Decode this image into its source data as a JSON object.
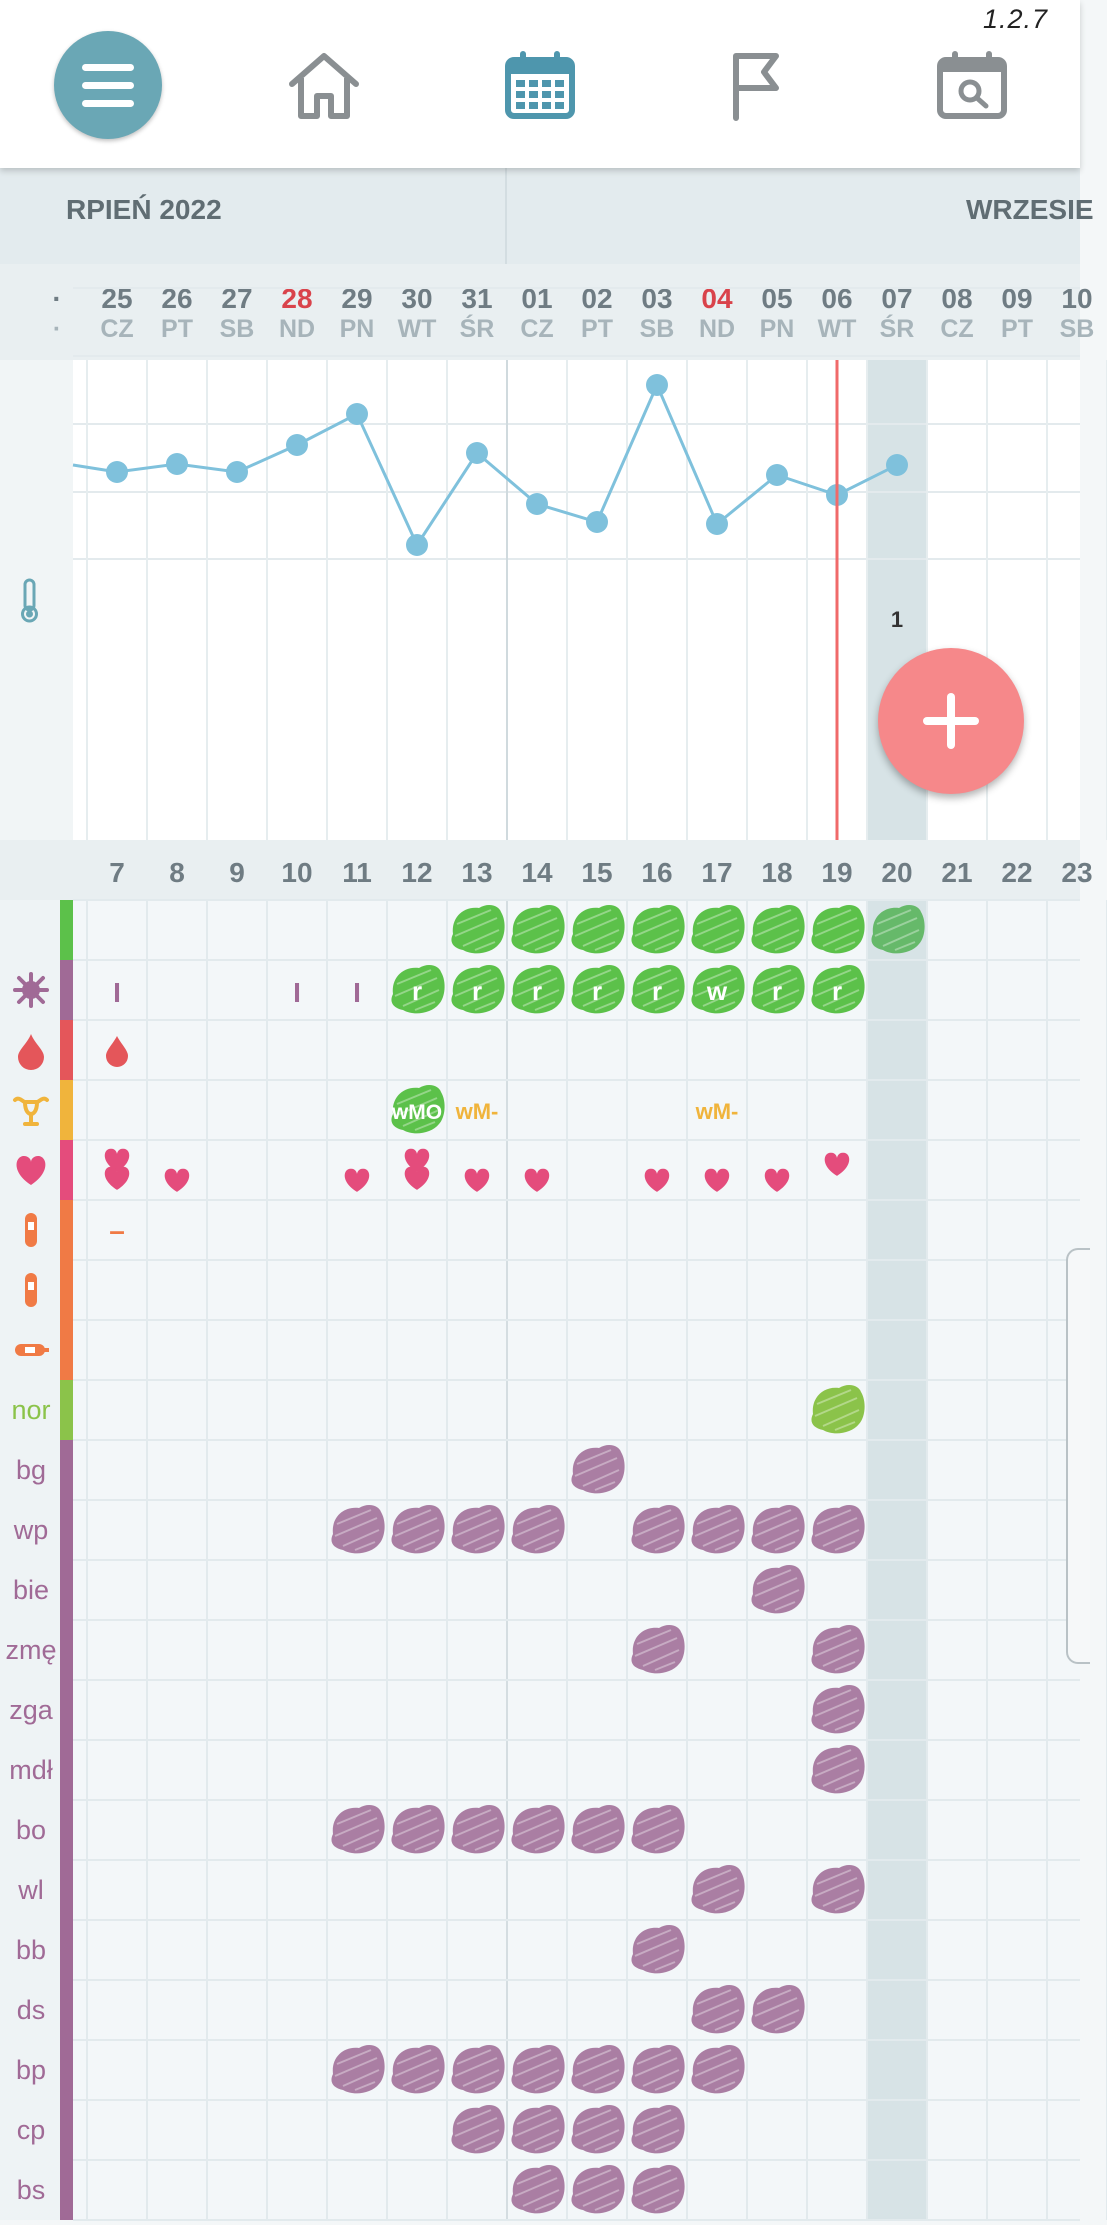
{
  "app": {
    "version": "1.2.7"
  },
  "nav": [
    {
      "name": "menu-icon"
    },
    {
      "name": "home-icon"
    },
    {
      "name": "calendar-icon",
      "active": true
    },
    {
      "name": "flag-icon"
    },
    {
      "name": "calendar-search-icon"
    }
  ],
  "months": [
    {
      "label": "RPIEŃ 2022"
    },
    {
      "label": "WRZESIE"
    }
  ],
  "days": [
    {
      "num": "·",
      "name": "·"
    },
    {
      "num": "25",
      "name": "CZ",
      "cycle": "7"
    },
    {
      "num": "26",
      "name": "PT",
      "cycle": "8"
    },
    {
      "num": "27",
      "name": "SB",
      "cycle": "9"
    },
    {
      "num": "28",
      "name": "ND",
      "cycle": "10",
      "red": true
    },
    {
      "num": "29",
      "name": "PN",
      "cycle": "11"
    },
    {
      "num": "30",
      "name": "WT",
      "cycle": "12"
    },
    {
      "num": "31",
      "name": "ŚR",
      "cycle": "13"
    },
    {
      "num": "01",
      "name": "CZ",
      "cycle": "14"
    },
    {
      "num": "02",
      "name": "PT",
      "cycle": "15"
    },
    {
      "num": "03",
      "name": "SB",
      "cycle": "16"
    },
    {
      "num": "04",
      "name": "ND",
      "cycle": "17",
      "red": true
    },
    {
      "num": "05",
      "name": "PN",
      "cycle": "18"
    },
    {
      "num": "06",
      "name": "WT",
      "cycle": "19"
    },
    {
      "num": "07",
      "name": "ŚR",
      "cycle": "20"
    },
    {
      "num": "08",
      "name": "CZ",
      "cycle": "21"
    },
    {
      "num": "09",
      "name": "PT",
      "cycle": "22"
    },
    {
      "num": "10",
      "name": "SB",
      "cycle": "23"
    }
  ],
  "temperature": {
    "points": [
      null,
      472,
      464,
      472,
      445,
      414,
      545,
      453,
      504,
      522,
      385,
      524,
      475,
      495,
      465
    ],
    "annotation": "1",
    "annotation_index": 14
  },
  "rows": [
    {
      "key": "cervical",
      "color": "#5cc14a",
      "icon": "none"
    },
    {
      "key": "sensation",
      "color": "#a06a96",
      "icon": "splat-icon"
    },
    {
      "key": "bleeding",
      "color": "#e4565a",
      "icon": "drop-icon"
    },
    {
      "key": "cervix",
      "color": "#f0b43c",
      "icon": "uterus-icon"
    },
    {
      "key": "sex",
      "color": "#e44c7c",
      "icon": "heart-icon"
    },
    {
      "key": "lh-test",
      "color": "#f07a45",
      "icon": "test-strip-icon"
    },
    {
      "key": "preg-test",
      "color": "#f07a45",
      "icon": "test-strip-icon"
    },
    {
      "key": "thermometer",
      "color": "#f07a45",
      "icon": "thermometer-icon"
    },
    {
      "key": "nor",
      "color": "#8bc34a",
      "label": "nor"
    },
    {
      "key": "bg",
      "color": "#a06a96",
      "label": "bg"
    },
    {
      "key": "wp",
      "color": "#a06a96",
      "label": "wp"
    },
    {
      "key": "bie",
      "color": "#a06a96",
      "label": "bie"
    },
    {
      "key": "zme",
      "color": "#a06a96",
      "label": "zmę"
    },
    {
      "key": "zga",
      "color": "#a06a96",
      "label": "zga"
    },
    {
      "key": "mdl",
      "color": "#a06a96",
      "label": "mdł"
    },
    {
      "key": "bo",
      "color": "#a06a96",
      "label": "bo"
    },
    {
      "key": "wl",
      "color": "#a06a96",
      "label": "wl"
    },
    {
      "key": "bb",
      "color": "#a06a96",
      "label": "bb"
    },
    {
      "key": "ds",
      "color": "#a06a96",
      "label": "ds"
    },
    {
      "key": "bp",
      "color": "#a06a96",
      "label": "bp"
    },
    {
      "key": "cp",
      "color": "#a06a96",
      "label": "cp"
    },
    {
      "key": "bs",
      "color": "#a06a96",
      "label": "bs"
    }
  ],
  "marks": {
    "splats": [
      {
        "row": 0,
        "cols": [
          7,
          8,
          9,
          10,
          11,
          12,
          13
        ],
        "color": "#5cc14a"
      },
      {
        "row": 0,
        "cols": [
          14
        ],
        "color": "#66b96a"
      },
      {
        "row": 1,
        "cols": [
          6,
          7,
          8,
          9,
          10,
          11,
          12,
          13
        ],
        "color": "#5cc14a"
      },
      {
        "row": 3,
        "cols": [
          6
        ],
        "color": "#5cc14a"
      },
      {
        "row": 8,
        "cols": [
          13
        ],
        "color": "#8bc34a"
      },
      {
        "row": 9,
        "cols": [
          9
        ],
        "color": "#aa7ea3"
      },
      {
        "row": 10,
        "cols": [
          5,
          6,
          7,
          8,
          10,
          11,
          12,
          13
        ],
        "color": "#aa7ea3"
      },
      {
        "row": 11,
        "cols": [
          12
        ],
        "color": "#aa7ea3"
      },
      {
        "row": 12,
        "cols": [
          10,
          13
        ],
        "color": "#aa7ea3"
      },
      {
        "row": 13,
        "cols": [
          13
        ],
        "color": "#aa7ea3"
      },
      {
        "row": 14,
        "cols": [
          13
        ],
        "color": "#aa7ea3"
      },
      {
        "row": 15,
        "cols": [
          5,
          6,
          7,
          8,
          9,
          10
        ],
        "color": "#aa7ea3"
      },
      {
        "row": 16,
        "cols": [
          11,
          13
        ],
        "color": "#aa7ea3"
      },
      {
        "row": 17,
        "cols": [
          10
        ],
        "color": "#aa7ea3"
      },
      {
        "row": 18,
        "cols": [
          11,
          12
        ],
        "color": "#aa7ea3"
      },
      {
        "row": 19,
        "cols": [
          5,
          6,
          7,
          8,
          9,
          10,
          11
        ],
        "color": "#aa7ea3"
      },
      {
        "row": 20,
        "cols": [
          7,
          8,
          9,
          10
        ],
        "color": "#aa7ea3"
      },
      {
        "row": 21,
        "cols": [
          8,
          9,
          10
        ],
        "color": "#aa7ea3"
      }
    ],
    "sensation_letters": [
      {
        "col": 6,
        "text": "r"
      },
      {
        "col": 7,
        "text": "r"
      },
      {
        "col": 8,
        "text": "r"
      },
      {
        "col": 9,
        "text": "r"
      },
      {
        "col": 10,
        "text": "r"
      },
      {
        "col": 11,
        "text": "w"
      },
      {
        "col": 12,
        "text": "r"
      },
      {
        "col": 13,
        "text": "r"
      }
    ],
    "ticks": [
      {
        "row": 1,
        "cols": [
          1,
          4,
          5
        ],
        "text": "I"
      }
    ],
    "drops": [
      {
        "row": 2,
        "col": 1
      }
    ],
    "cervix_texts": [
      {
        "col": 6,
        "text": "wMO"
      },
      {
        "col": 7,
        "text": "wM-"
      },
      {
        "col": 11,
        "text": "wM-"
      }
    ],
    "hearts": [
      {
        "col": 1,
        "count": 2
      },
      {
        "col": 2,
        "count": 1
      },
      {
        "col": 5,
        "count": 1
      },
      {
        "col": 6,
        "count": 2
      },
      {
        "col": 7,
        "count": 1
      },
      {
        "col": 8,
        "count": 1
      },
      {
        "col": 10,
        "count": 1
      },
      {
        "col": 11,
        "count": 1
      },
      {
        "col": 12,
        "count": 1
      },
      {
        "col": 13,
        "count": 1,
        "high": true
      }
    ],
    "dashes": [
      {
        "row": 5,
        "col": 1,
        "text": "–"
      }
    ]
  },
  "today_index": 13,
  "selected_index": 14,
  "colors": {
    "accent": "#6aa7b5",
    "today_line": "#f06a6a",
    "fab": "#f6888a",
    "graph_line": "#7fc1dc"
  }
}
